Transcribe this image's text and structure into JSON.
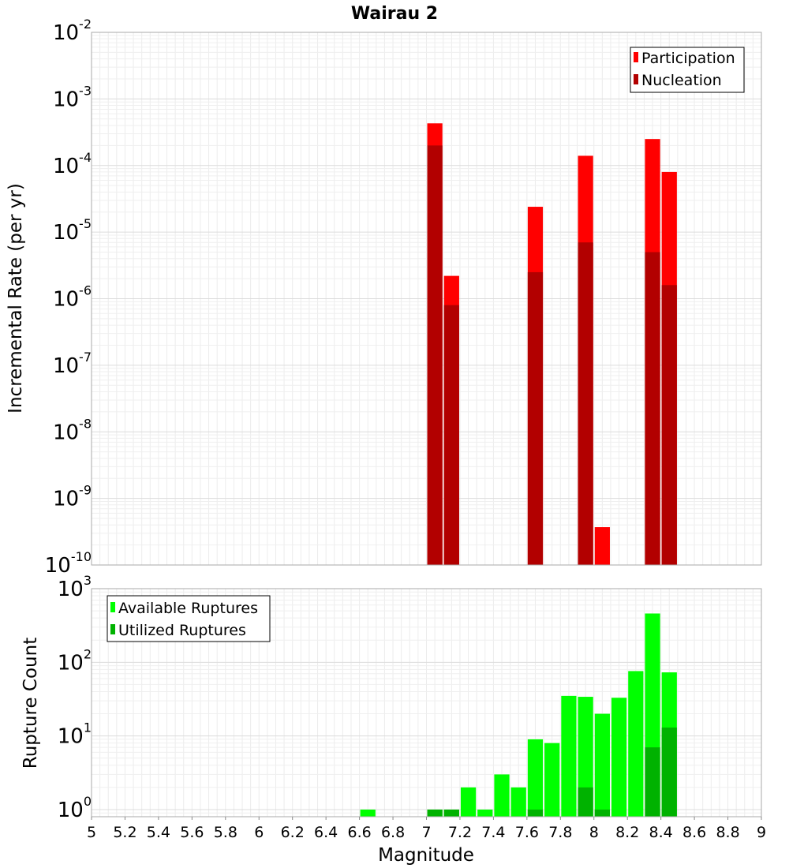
{
  "title": "Wairau 2",
  "chart_data": [
    {
      "type": "bar",
      "yscale": "log",
      "ylim": [
        1e-10,
        0.01
      ],
      "xlim": [
        5,
        9
      ],
      "ylabel": "Incremental Rate (per yr)",
      "grid": true,
      "legend_position": "top-right",
      "y_tick_labels": [
        "10^-10",
        "10^-9",
        "10^-8",
        "10^-7",
        "10^-6",
        "10^-5",
        "10^-4",
        "10^-3",
        "10^-2"
      ],
      "series": [
        {
          "name": "Participation",
          "color": "#ff0000",
          "x": [
            7.05,
            7.15,
            7.65,
            7.95,
            8.05,
            8.35,
            8.45
          ],
          "values": [
            0.00043,
            2.2e-06,
            2.4e-05,
            0.00014,
            3.7e-10,
            0.00025,
            8e-05
          ]
        },
        {
          "name": "Nucleation",
          "color": "#b20000",
          "x": [
            7.05,
            7.15,
            7.65,
            7.95,
            8.35,
            8.45
          ],
          "values": [
            0.0002,
            8e-07,
            2.5e-06,
            7e-06,
            5e-06,
            1.6e-06
          ]
        }
      ]
    },
    {
      "type": "bar",
      "yscale": "log",
      "ylim": [
        0.8,
        1000
      ],
      "xlim": [
        5,
        9
      ],
      "xlabel": "Magnitude",
      "ylabel": "Rupture Count",
      "grid": true,
      "legend_position": "top-left",
      "x_tick_labels": [
        "5",
        "5.2",
        "5.4",
        "5.6",
        "5.8",
        "6",
        "6.2",
        "6.4",
        "6.6",
        "6.8",
        "7",
        "7.2",
        "7.4",
        "7.6",
        "7.8",
        "8",
        "8.2",
        "8.4",
        "8.6",
        "8.8",
        "9"
      ],
      "y_tick_labels": [
        "10^0",
        "10^1",
        "10^2",
        "10^3"
      ],
      "series": [
        {
          "name": "Available Ruptures",
          "color": "#00ff00",
          "x": [
            6.65,
            7.05,
            7.15,
            7.25,
            7.35,
            7.45,
            7.55,
            7.65,
            7.75,
            7.85,
            7.95,
            8.05,
            8.15,
            8.25,
            8.35,
            8.45
          ],
          "values": [
            1,
            1,
            1,
            2,
            1,
            3,
            2,
            9,
            8,
            35,
            34,
            20,
            33,
            76,
            460,
            73
          ]
        },
        {
          "name": "Utilized Ruptures",
          "color": "#00b200",
          "x": [
            7.05,
            7.15,
            7.65,
            7.95,
            8.05,
            8.35,
            8.45
          ],
          "values": [
            1,
            1,
            1,
            2,
            1,
            7,
            13
          ]
        }
      ]
    }
  ]
}
